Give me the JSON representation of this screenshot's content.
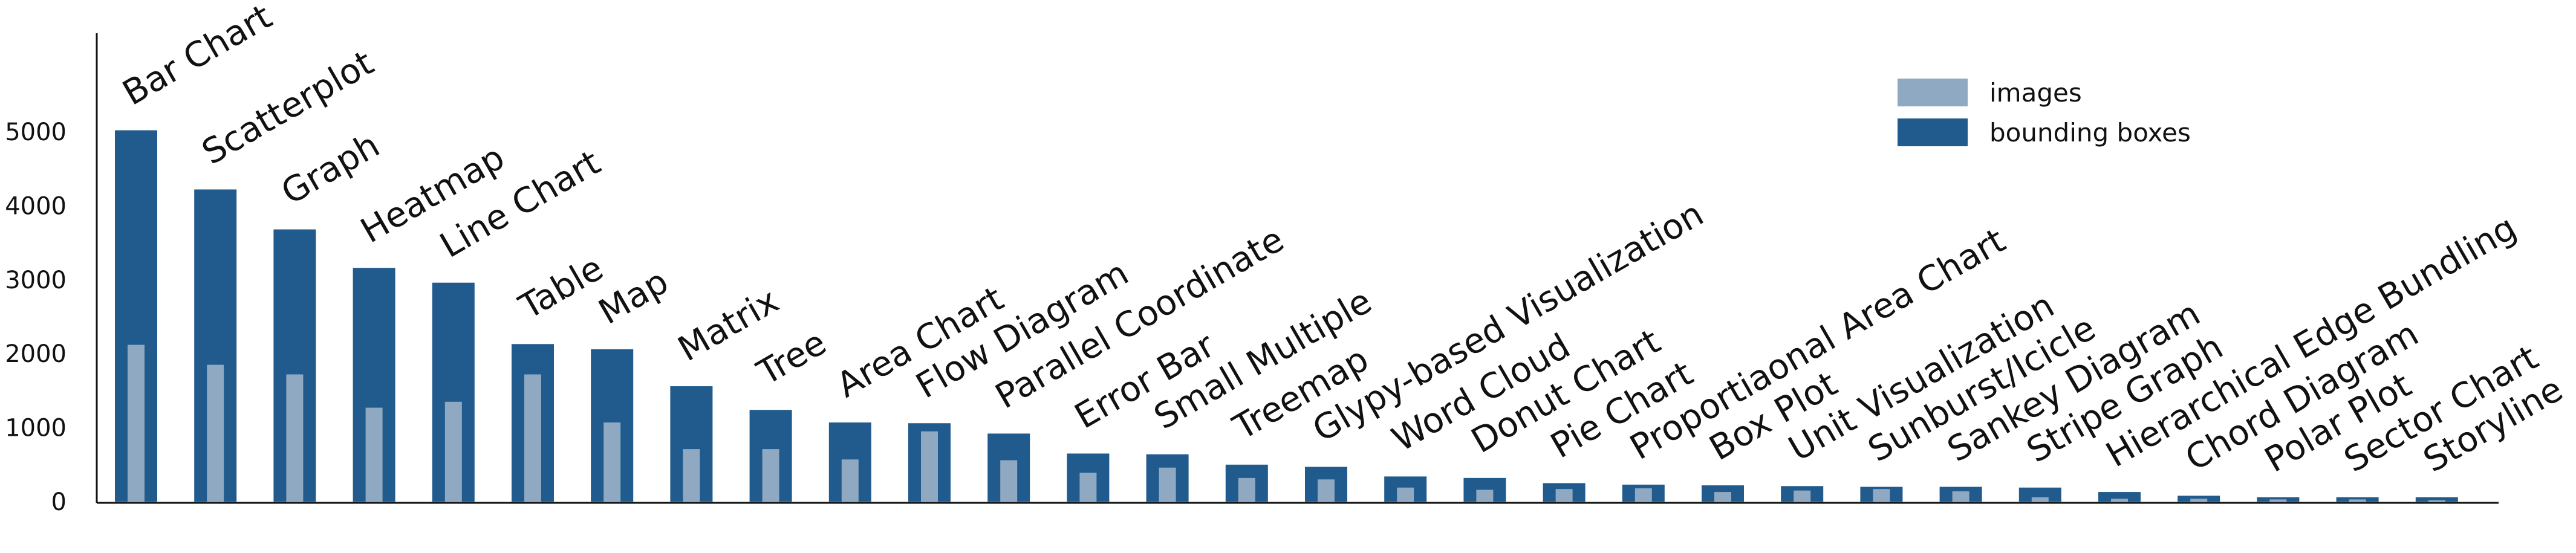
{
  "chart_data": {
    "type": "bar",
    "title": "",
    "xlabel": "",
    "ylabel": "",
    "ylim": [
      0,
      6500
    ],
    "yticks": [
      0,
      1000,
      2000,
      3000,
      4000,
      5000
    ],
    "grid": false,
    "legend_position": "top-right",
    "categories": [
      "Bar Chart",
      "Scatterplot",
      "Graph",
      "Heatmap",
      "Line Chart",
      "Table",
      "Map",
      "Matrix",
      "Tree",
      "Area Chart",
      "Flow Diagram",
      "Parallel Coordinate",
      "Error Bar",
      "Small Multiple",
      "Treemap",
      "Glypy-based Visualization",
      "Word Cloud",
      "Donut Chart",
      "Pie Chart",
      "Proportiaonal Area Chart",
      "Box Plot",
      "Unit Visualization",
      "Sunburst/Icicle",
      "Sankey Diagram",
      "Stripe Graph",
      "Hierarchical Edge Bundling",
      "Chord Diagram",
      "Polar Plot",
      "Sector Chart",
      "Storyline"
    ],
    "series": [
      {
        "name": "images",
        "color": "#8fa9c2",
        "values": [
          2120,
          1850,
          1720,
          1270,
          1350,
          1720,
          1070,
          710,
          710,
          570,
          950,
          560,
          390,
          460,
          320,
          300,
          190,
          160,
          170,
          180,
          130,
          150,
          170,
          140,
          60,
          40,
          40,
          30,
          30,
          20
        ]
      },
      {
        "name": "bounding boxes",
        "color": "#215a8c",
        "values": [
          5020,
          4220,
          3680,
          3160,
          2960,
          2130,
          2060,
          1560,
          1240,
          1070,
          1060,
          920,
          650,
          640,
          500,
          470,
          340,
          320,
          250,
          230,
          220,
          210,
          200,
          200,
          190,
          130,
          80,
          60,
          60,
          60
        ]
      }
    ]
  }
}
